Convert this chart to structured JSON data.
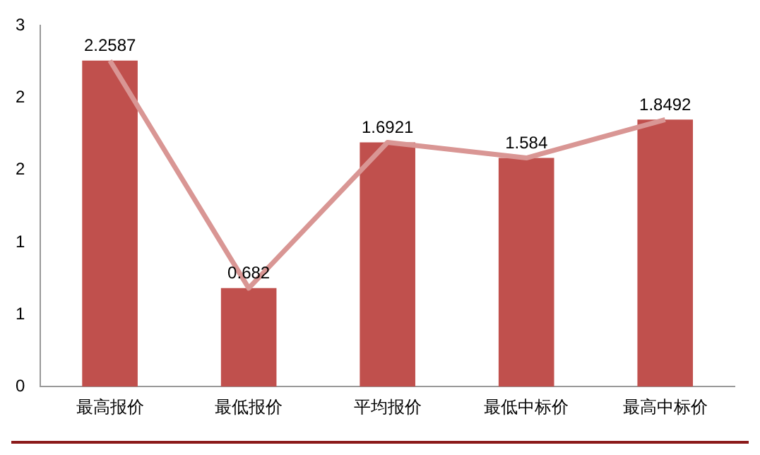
{
  "chart_data": {
    "type": "bar",
    "categories": [
      "最高报价",
      "最低报价",
      "平均报价",
      "最低中标价",
      "最高中标价"
    ],
    "series": [
      {
        "color": "#c0504d",
        "values": [
          2.2587,
          0.682,
          1.6921,
          1.584,
          1.8492
        ],
        "value_labels": [
          "2.2587",
          "0.682",
          "1.6921",
          "1.584",
          "1.8492"
        ]
      },
      {
        "type": "line",
        "color": "#d99694",
        "values": [
          2.2587,
          0.682,
          1.6921,
          1.584,
          1.8492
        ]
      }
    ],
    "ylim": [
      0,
      2.5
    ],
    "yticks": [
      0,
      {
        "value": 0.5,
        "label": "1"
      },
      1,
      {
        "value": 1.5,
        "label": "2"
      },
      2,
      {
        "value": 2.5,
        "label": "3"
      }
    ],
    "grid": false,
    "legend": false,
    "marker": "none",
    "line_style": "solid"
  }
}
